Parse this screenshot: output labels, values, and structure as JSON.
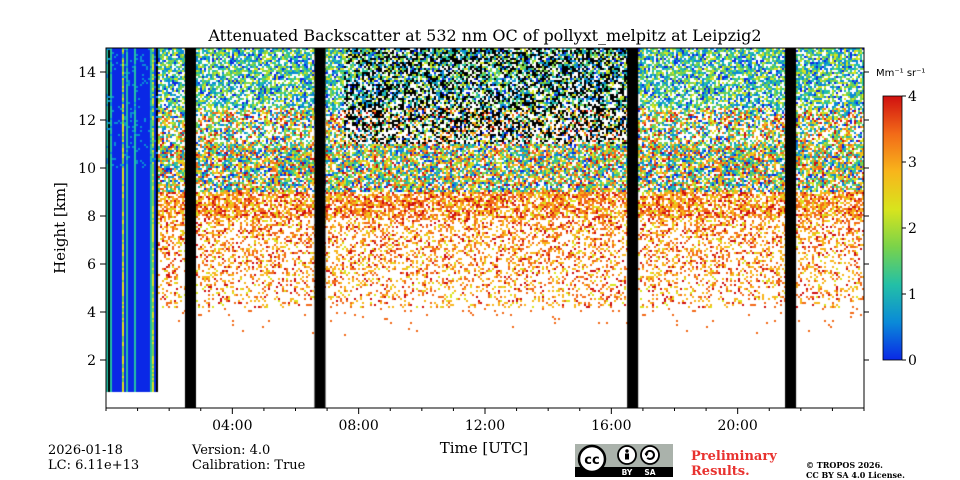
{
  "chart_data": {
    "type": "heatmap",
    "title": "Attenuated Backscatter at 532 nm OC of pollyxt_melpitz at Leipzig2",
    "xlabel": "Time [UTC]",
    "ylabel": "Height [km]",
    "xlim_hours": [
      0,
      24
    ],
    "ylim_km": [
      0,
      15
    ],
    "x_ticks": [
      {
        "hour": 4,
        "label": "04:00"
      },
      {
        "hour": 8,
        "label": "08:00"
      },
      {
        "hour": 12,
        "label": "12:00"
      },
      {
        "hour": 16,
        "label": "16:00"
      },
      {
        "hour": 20,
        "label": "20:00"
      }
    ],
    "x_minor_hours": [
      0,
      1,
      2,
      3,
      5,
      6,
      7,
      9,
      10,
      11,
      13,
      14,
      15,
      17,
      18,
      19,
      21,
      22,
      23,
      24
    ],
    "y_ticks": [
      2,
      4,
      6,
      8,
      10,
      12,
      14
    ],
    "colorbar": {
      "unit_label": "Mm⁻¹ sr⁻¹",
      "min": 0,
      "max": 4,
      "ticks": [
        0,
        1,
        2,
        3,
        4
      ],
      "colormap": [
        "#0a28e6",
        "#0a8ad8",
        "#23c0a6",
        "#7ad34a",
        "#d8e41d",
        "#f8b51b",
        "#f26a18",
        "#d01010"
      ]
    },
    "no_data_intervals_hours": [
      {
        "start": 2.5,
        "end": 2.85
      },
      {
        "start": 6.6,
        "end": 6.95
      },
      {
        "start": 16.5,
        "end": 16.85
      },
      {
        "start": 21.5,
        "end": 21.85
      }
    ],
    "low_level_strong_signal": {
      "start_hour": 0,
      "end_hour": 1.6,
      "from_km": 0.7,
      "to_km": 15
    },
    "noise_layer_bottom_km": 4.2,
    "dense_layer_km": [
      8,
      11
    ],
    "dark_noisy_band_hours": [
      7.5,
      16.5
    ]
  },
  "footer": {
    "date": "2026-01-18",
    "lc": "LC: 6.11e+13",
    "version": "Version: 4.0",
    "calibration": "Calibration: True",
    "preliminary_line1": "Preliminary",
    "preliminary_line2": "Results.",
    "copyright_line1": "© TROPOS 2026.",
    "copyright_line2": "CC BY SA 4.0 License.",
    "badge": {
      "cc": "cc",
      "by": "BY",
      "sa": "SA"
    }
  }
}
